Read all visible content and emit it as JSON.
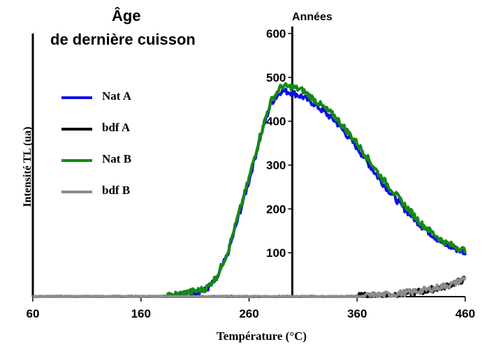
{
  "title_line1": "Âge",
  "title_line2": "de dernière cuisson",
  "annotation": "Années",
  "chart_data": {
    "type": "line",
    "xlabel": "Température (°C)",
    "ylabel": "Intensité TL (ua)",
    "xlim": [
      60,
      460
    ],
    "ylim": [
      0,
      600
    ],
    "x_ticks": [
      "60",
      "160",
      "260",
      "360",
      "460"
    ],
    "y_ticks": [
      "100",
      "200",
      "300",
      "400",
      "500",
      "600"
    ],
    "vertical_axis_at_x": 300,
    "legend_position": "left",
    "series": [
      {
        "name": "Nat A",
        "color": "#1010e6",
        "x": [
          60,
          180,
          200,
          220,
          230,
          240,
          250,
          260,
          270,
          280,
          290,
          300,
          310,
          320,
          340,
          360,
          380,
          400,
          420,
          440,
          460
        ],
        "y": [
          0,
          0,
          5,
          15,
          40,
          95,
          180,
          265,
          360,
          440,
          470,
          465,
          455,
          440,
          400,
          340,
          270,
          210,
          160,
          120,
          100
        ]
      },
      {
        "name": "bdf A",
        "color": "#000000",
        "x": [
          60,
          350,
          380,
          400,
          420,
          440,
          460
        ],
        "y": [
          0,
          0,
          3,
          7,
          12,
          22,
          40
        ]
      },
      {
        "name": "Nat B",
        "color": "#138a13",
        "x": [
          60,
          180,
          200,
          220,
          230,
          240,
          250,
          260,
          270,
          280,
          290,
          300,
          310,
          320,
          340,
          360,
          380,
          400,
          420,
          440,
          460
        ],
        "y": [
          0,
          0,
          8,
          18,
          45,
          100,
          185,
          270,
          365,
          445,
          480,
          478,
          470,
          450,
          410,
          350,
          280,
          220,
          165,
          125,
          105
        ]
      },
      {
        "name": "bdf B",
        "color": "#8c8c8c",
        "x": [
          60,
          360,
          390,
          410,
          430,
          450,
          460
        ],
        "y": [
          0,
          0,
          5,
          10,
          18,
          30,
          42
        ]
      }
    ]
  }
}
